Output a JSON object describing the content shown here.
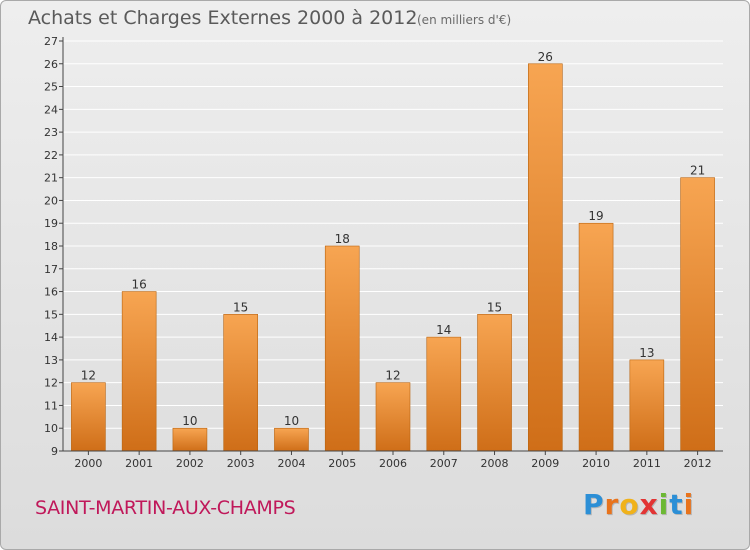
{
  "header": {
    "title": "Achats et Charges Externes 2000 à 2012",
    "unit": "(en milliers d'€)"
  },
  "footer": {
    "commune": "SAINT-MARTIN-AUX-CHAMPS"
  },
  "logo": {
    "text": "Proxiti",
    "letters": [
      "P",
      "r",
      "o",
      "x",
      "i",
      "t",
      "i"
    ],
    "colors": [
      "#2c8fd6",
      "#e8731c",
      "#f0b21a",
      "#e23434",
      "#6cb833",
      "#2c8fd6",
      "#e8731c"
    ]
  },
  "colors": {
    "bar_top": "#f7a552",
    "bar_bottom": "#cf6e18",
    "bar_edge": "#b8630f",
    "axis": "#444444",
    "grid": "#ffffff"
  },
  "chart_data": {
    "type": "bar",
    "categories": [
      "2000",
      "2001",
      "2002",
      "2003",
      "2004",
      "2005",
      "2006",
      "2007",
      "2008",
      "2009",
      "2010",
      "2011",
      "2012"
    ],
    "values": [
      12,
      16,
      10,
      15,
      10,
      18,
      12,
      14,
      15,
      26,
      19,
      13,
      21
    ],
    "title": "Achats et Charges Externes 2000 à 2012",
    "xlabel": "",
    "ylabel": "",
    "ylim": [
      9,
      27
    ],
    "yticks": [
      9,
      10,
      11,
      12,
      13,
      14,
      15,
      16,
      17,
      18,
      19,
      20,
      21,
      22,
      23,
      24,
      25,
      26,
      27
    ],
    "grid": true,
    "data_labels": true
  }
}
